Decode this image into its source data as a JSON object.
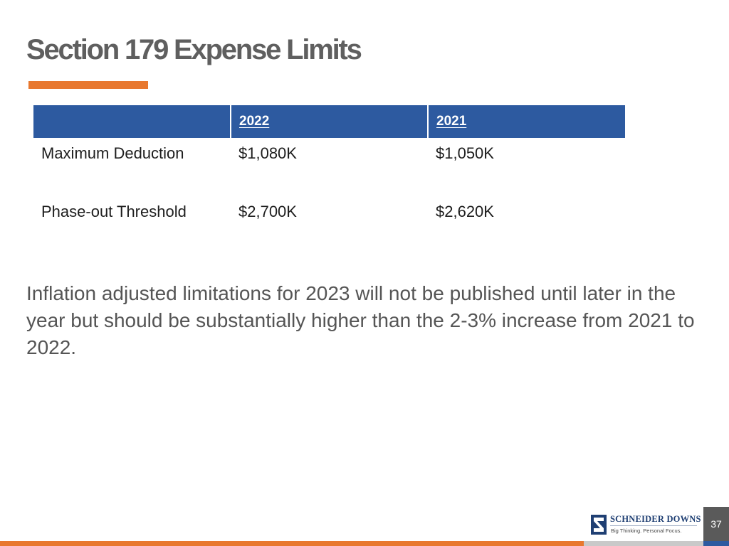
{
  "slide": {
    "title": "Section 179 Expense Limits",
    "page_number": "37",
    "colors": {
      "accent_orange": "#e8782f",
      "header_blue": "#2d5aa0",
      "title_grey": "#5f5f5f",
      "footer_grey": "#c9c9c9"
    }
  },
  "table": {
    "headers": [
      "",
      "2022",
      "2021"
    ],
    "rows": [
      {
        "label": "Maximum Deduction",
        "values": [
          "$1,080K",
          "$1,050K"
        ]
      },
      {
        "label": "Phase-out Threshold",
        "values": [
          "$2,700K",
          "$2,620K"
        ]
      }
    ]
  },
  "body": {
    "text": "Inflation adjusted limitations for 2023 will not be published until later in the year but should be substantially higher than the 2-3% increase from 2021 to 2022."
  },
  "logo": {
    "name": "SCHNEIDER DOWNS",
    "tagline": "Big Thinking. Personal Focus."
  }
}
